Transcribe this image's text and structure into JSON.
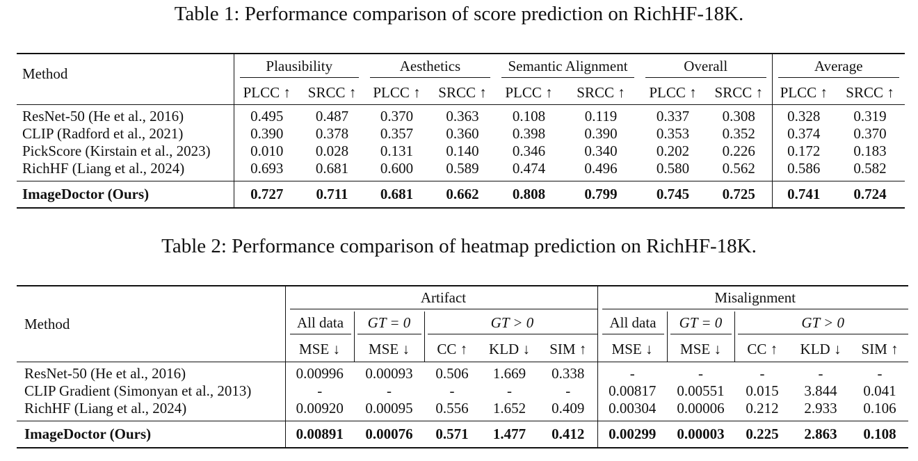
{
  "table1": {
    "caption": "Table 1: Performance comparison of score prediction on RichHF-18K.",
    "method_header": "Method",
    "groups": [
      "Plausibility",
      "Aesthetics",
      "Semantic Alignment",
      "Overall",
      "Average"
    ],
    "subheaders": [
      "PLCC ↑",
      "SRCC ↑",
      "PLCC ↑",
      "SRCC ↑",
      "PLCC ↑",
      "SRCC ↑",
      "PLCC ↑",
      "SRCC ↑",
      "PLCC ↑",
      "SRCC ↑"
    ],
    "rows": [
      {
        "method": "ResNet-50 (He et al., 2016)",
        "values": [
          "0.495",
          "0.487",
          "0.370",
          "0.363",
          "0.108",
          "0.119",
          "0.337",
          "0.308",
          "0.328",
          "0.319"
        ]
      },
      {
        "method": "CLIP (Radford et al., 2021)",
        "values": [
          "0.390",
          "0.378",
          "0.357",
          "0.360",
          "0.398",
          "0.390",
          "0.353",
          "0.352",
          "0.374",
          "0.370"
        ]
      },
      {
        "method": "PickScore (Kirstain et al., 2023)",
        "values": [
          "0.010",
          "0.028",
          "0.131",
          "0.140",
          "0.346",
          "0.340",
          "0.202",
          "0.226",
          "0.172",
          "0.183"
        ]
      },
      {
        "method": "RichHF (Liang et al., 2024)",
        "values": [
          "0.693",
          "0.681",
          "0.600",
          "0.589",
          "0.474",
          "0.496",
          "0.580",
          "0.562",
          "0.586",
          "0.582"
        ]
      }
    ],
    "ours": {
      "method": "ImageDoctor (Ours)",
      "values": [
        "0.727",
        "0.711",
        "0.681",
        "0.662",
        "0.808",
        "0.799",
        "0.745",
        "0.725",
        "0.741",
        "0.724"
      ]
    }
  },
  "table2": {
    "caption": "Table 2: Performance comparison of heatmap prediction on RichHF-18K.",
    "method_header": "Method",
    "groups": [
      "Artifact",
      "Misalignment"
    ],
    "subgroups": [
      "All data",
      "GT = 0",
      "GT > 0",
      "All data",
      "GT = 0",
      "GT > 0"
    ],
    "metrics": [
      "MSE ↓",
      "MSE ↓",
      "CC ↑",
      "KLD ↓",
      "SIM ↑",
      "MSE ↓",
      "MSE ↓",
      "CC ↑",
      "KLD ↓",
      "SIM ↑"
    ],
    "rows": [
      {
        "method": "ResNet-50 (He et al., 2016)",
        "values": [
          "0.00996",
          "0.00093",
          "0.506",
          "1.669",
          "0.338",
          "-",
          "-",
          "-",
          "-",
          "-"
        ]
      },
      {
        "method": "CLIP Gradient (Simonyan et al., 2013)",
        "values": [
          "-",
          "-",
          "-",
          "-",
          "-",
          "0.00817",
          "0.00551",
          "0.015",
          "3.844",
          "0.041"
        ]
      },
      {
        "method": "RichHF (Liang et al., 2024)",
        "values": [
          "0.00920",
          "0.00095",
          "0.556",
          "1.652",
          "0.409",
          "0.00304",
          "0.00006",
          "0.212",
          "2.933",
          "0.106"
        ]
      }
    ],
    "ours": {
      "method": "ImageDoctor (Ours)",
      "values": [
        "0.00891",
        "0.00076",
        "0.571",
        "1.477",
        "0.412",
        "0.00299",
        "0.00003",
        "0.225",
        "2.863",
        "0.108"
      ]
    }
  }
}
